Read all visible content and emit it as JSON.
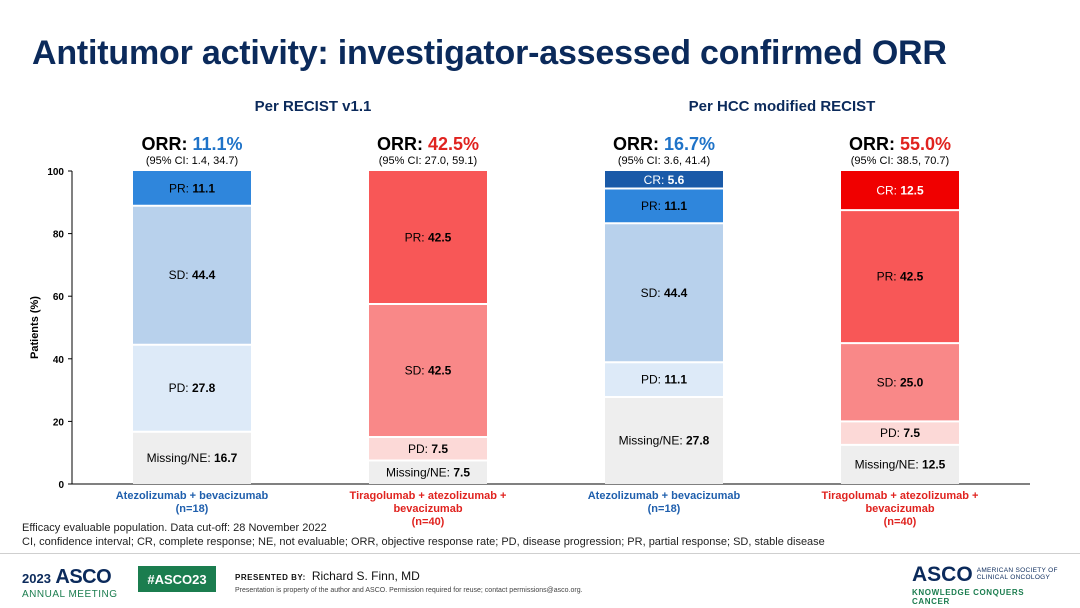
{
  "title": "Antitumor activity: investigator-assessed confirmed ORR",
  "groups": [
    {
      "label": "Per RECIST v1.1"
    },
    {
      "label": "Per HCC modified RECIST"
    }
  ],
  "chart_data": {
    "type": "bar",
    "stacked": true,
    "ylabel": "Patients (%)",
    "ylim": [
      0,
      100
    ],
    "yticks": [
      0,
      20,
      40,
      60,
      80,
      100
    ],
    "bars": [
      {
        "group": "Per RECIST v1.1",
        "category": "Atezolizumab + bevacizumab (n=18)",
        "category_lines": [
          "Atezolizumab + bevacizumab",
          "(n=18)"
        ],
        "category_color": "#1f5fad",
        "orr_prefix": "ORR:",
        "orr_value": "11.1%",
        "orr_color": "#1f73c8",
        "ci": "(95% CI: 1.4, 34.7)",
        "segments": [
          {
            "name": "Missing/NE",
            "value": 16.7,
            "label": "16.7",
            "color": "#eeeeee",
            "text_color": "#000000"
          },
          {
            "name": "PD",
            "value": 27.8,
            "label": "27.8",
            "color": "#ddeaf8",
            "text_color": "#000000"
          },
          {
            "name": "SD",
            "value": 44.4,
            "label": "44.4",
            "color": "#b8d1ec",
            "text_color": "#000000"
          },
          {
            "name": "PR",
            "value": 11.1,
            "label": "11.1",
            "color": "#2f86dc",
            "text_color": "#000000"
          }
        ]
      },
      {
        "group": "Per RECIST v1.1",
        "category": "Tiragolumab + atezolizumab + bevacizumab (n=40)",
        "category_lines": [
          "Tiragolumab + atezolizumab +",
          "bevacizumab",
          "(n=40)"
        ],
        "category_color": "#e0231f",
        "orr_prefix": "ORR:",
        "orr_value": "42.5%",
        "orr_color": "#e0231f",
        "ci": "(95% CI: 27.0, 59.1)",
        "segments": [
          {
            "name": "Missing/NE",
            "value": 7.5,
            "label": "7.5",
            "color": "#eeeeee",
            "text_color": "#000000"
          },
          {
            "name": "PD",
            "value": 7.5,
            "label": "7.5",
            "color": "#fcd9d7",
            "text_color": "#000000"
          },
          {
            "name": "SD",
            "value": 42.5,
            "label": "42.5",
            "color": "#f98888",
            "text_color": "#000000"
          },
          {
            "name": "PR",
            "value": 42.5,
            "label": "42.5",
            "color": "#f85757",
            "text_color": "#000000"
          }
        ]
      },
      {
        "group": "Per HCC modified RECIST",
        "category": "Atezolizumab + bevacizumab (n=18)",
        "category_lines": [
          "Atezolizumab + bevacizumab",
          "(n=18)"
        ],
        "category_color": "#1f5fad",
        "orr_prefix": "ORR:",
        "orr_value": "16.7%",
        "orr_color": "#1f73c8",
        "ci": "(95% CI: 3.6, 41.4)",
        "segments": [
          {
            "name": "Missing/NE",
            "value": 27.8,
            "label": "27.8",
            "color": "#eeeeee",
            "text_color": "#000000"
          },
          {
            "name": "PD",
            "value": 11.1,
            "label": "11.1",
            "color": "#ddeaf8",
            "text_color": "#000000"
          },
          {
            "name": "SD",
            "value": 44.4,
            "label": "44.4",
            "color": "#b8d1ec",
            "text_color": "#000000"
          },
          {
            "name": "PR",
            "value": 11.1,
            "label": "11.1",
            "color": "#2f86dc",
            "text_color": "#000000"
          },
          {
            "name": "CR",
            "value": 5.6,
            "label": "5.6",
            "color": "#1a5aa8",
            "text_color": "#ffffff"
          }
        ]
      },
      {
        "group": "Per HCC modified RECIST",
        "category": "Tiragolumab + atezolizumab + bevacizumab (n=40)",
        "category_lines": [
          "Tiragolumab + atezolizumab +",
          "bevacizumab",
          "(n=40)"
        ],
        "category_color": "#e0231f",
        "orr_prefix": "ORR:",
        "orr_value": "55.0%",
        "orr_color": "#e0231f",
        "ci": "(95% CI: 38.5, 70.7)",
        "segments": [
          {
            "name": "Missing/NE",
            "value": 12.5,
            "label": "12.5",
            "color": "#eeeeee",
            "text_color": "#000000"
          },
          {
            "name": "PD",
            "value": 7.5,
            "label": "7.5",
            "color": "#fcd9d7",
            "text_color": "#000000"
          },
          {
            "name": "SD",
            "value": 25.0,
            "label": "25.0",
            "color": "#f98888",
            "text_color": "#000000"
          },
          {
            "name": "PR",
            "value": 42.5,
            "label": "42.5",
            "color": "#f85757",
            "text_color": "#000000"
          },
          {
            "name": "CR",
            "value": 12.5,
            "label": "12.5",
            "color": "#f00000",
            "text_color": "#ffffff"
          }
        ]
      }
    ]
  },
  "footnotes": {
    "line1": "Efficacy evaluable population. Data cut-off: 28 November 2022",
    "line2": "CI, confidence interval; CR, complete response; NE, not evaluable; ORR, objective response rate; PD, disease progression; PR, partial response; SD, stable disease"
  },
  "footer": {
    "year": "2023",
    "asco": "ASCO",
    "annual_meeting": "ANNUAL MEETING",
    "hashtag": "#ASCO23",
    "presented_by": "PRESENTED BY:",
    "presenter": "Richard S. Finn, MD",
    "property_note": "Presentation is property of the author and ASCO. Permission required for reuse; contact permissions@asco.org.",
    "society_line1": "AMERICAN SOCIETY OF",
    "society_line2": "CLINICAL ONCOLOGY",
    "tagline": "KNOWLEDGE CONQUERS CANCER"
  }
}
